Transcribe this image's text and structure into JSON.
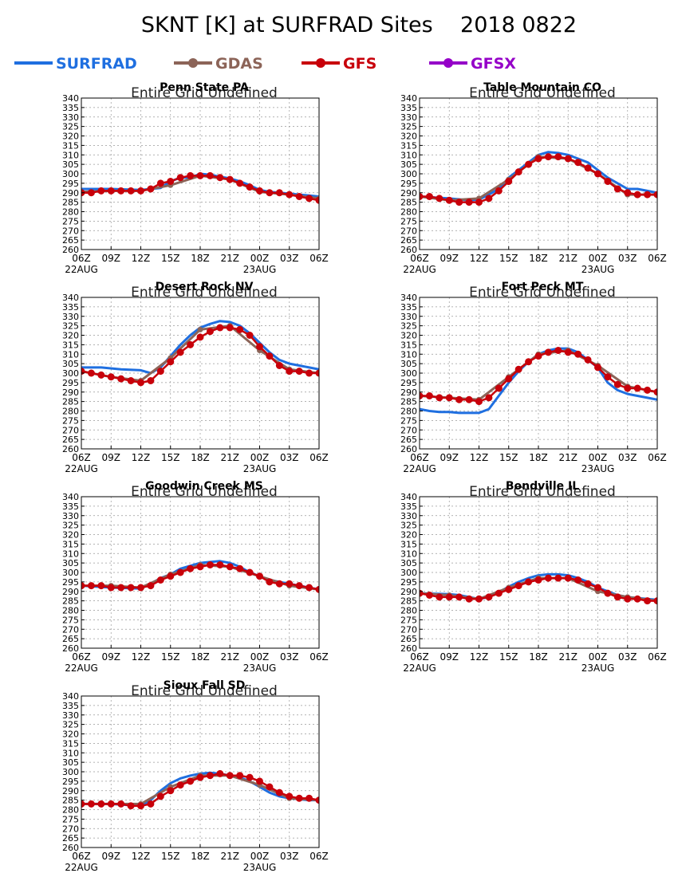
{
  "title": "SKNT [K] at SURFRAD Sites    2018 0822",
  "legend": [
    {
      "label": "SURFRAD",
      "color": "#1f6fe0",
      "marker": false
    },
    {
      "label": "GDAS",
      "color": "#8c6458",
      "marker": true
    },
    {
      "label": "GFS",
      "color": "#c8000a",
      "marker": true
    },
    {
      "label": "GFSX",
      "color": "#9500c8",
      "marker": true
    }
  ],
  "note": "Entire Grid Undefined",
  "axes": {
    "y_ticks": [
      260,
      265,
      270,
      275,
      280,
      285,
      290,
      295,
      300,
      305,
      310,
      315,
      320,
      325,
      330,
      335,
      340
    ],
    "ylim": [
      260,
      340
    ],
    "x_ticks": [
      "06Z",
      "09Z",
      "12Z",
      "15Z",
      "18Z",
      "21Z",
      "00Z",
      "03Z",
      "06Z"
    ],
    "x_hours": [
      0,
      3,
      6,
      9,
      12,
      15,
      18,
      21,
      24
    ],
    "xlim": [
      0,
      24
    ],
    "dates": [
      {
        "label": "22AUG",
        "hour": 0
      },
      {
        "label": "23AUG",
        "hour": 18
      }
    ],
    "grid": true
  },
  "chart_data": [
    {
      "type": "line",
      "site": "Penn State PA",
      "series": [
        {
          "name": "SURFRAD",
          "x": [
            0,
            3,
            6,
            8,
            9,
            10,
            11,
            12,
            13,
            14,
            15,
            16,
            17,
            18,
            19,
            20,
            21,
            22,
            23,
            24
          ],
          "values": [
            292,
            292,
            291.5,
            292.5,
            296,
            298,
            298,
            300,
            299.5,
            298.5,
            297.5,
            296,
            294,
            291.5,
            290.5,
            290,
            289.5,
            289,
            288.5,
            288
          ]
        },
        {
          "name": "GDAS",
          "x": [
            0,
            3,
            6,
            9,
            12,
            15,
            18,
            21,
            24
          ],
          "values": [
            290.5,
            291,
            291,
            294,
            299,
            297,
            290.5,
            289,
            287
          ]
        },
        {
          "name": "GFS",
          "x": [
            0,
            1,
            2,
            3,
            4,
            5,
            6,
            7,
            8,
            9,
            10,
            11,
            12,
            13,
            14,
            15,
            16,
            17,
            18,
            19,
            20,
            21,
            22,
            23,
            24
          ],
          "values": [
            290,
            290,
            291,
            291,
            291,
            291,
            291,
            292,
            295,
            296,
            298,
            299,
            299,
            299,
            298,
            297,
            295,
            293,
            291,
            290,
            290,
            289,
            288,
            287,
            286
          ]
        }
      ]
    },
    {
      "type": "line",
      "site": "Table Mountain CO",
      "series": [
        {
          "name": "SURFRAD",
          "x": [
            0,
            3,
            5,
            6,
            7,
            8,
            9,
            10,
            11,
            12,
            13,
            14,
            15,
            16,
            17,
            18,
            19,
            20,
            21,
            22,
            23,
            24
          ],
          "values": [
            288,
            287,
            286,
            286.5,
            289,
            292,
            298,
            302,
            306,
            310,
            311.5,
            311,
            310,
            308,
            306,
            302,
            298,
            295,
            292,
            292,
            291,
            290
          ]
        },
        {
          "name": "GDAS",
          "x": [
            0,
            3,
            6,
            9,
            12,
            15,
            18,
            21,
            24
          ],
          "values": [
            288,
            286,
            287,
            297,
            309,
            308,
            300,
            289,
            289
          ]
        },
        {
          "name": "GFS",
          "x": [
            0,
            1,
            2,
            3,
            4,
            5,
            6,
            7,
            8,
            9,
            10,
            11,
            12,
            13,
            14,
            15,
            16,
            17,
            18,
            19,
            20,
            21,
            22,
            23,
            24
          ],
          "values": [
            288,
            288,
            287,
            286,
            285,
            285,
            285,
            287,
            291,
            296,
            301,
            305,
            308,
            309,
            309,
            308,
            306,
            303,
            300,
            296,
            292,
            290,
            289,
            289,
            289
          ]
        }
      ]
    },
    {
      "type": "line",
      "site": "Desert Rock NV",
      "series": [
        {
          "name": "SURFRAD",
          "x": [
            0,
            1,
            2,
            4,
            6,
            7,
            8,
            9,
            10,
            11,
            12,
            13,
            14,
            15,
            16,
            17,
            18,
            19,
            20,
            21,
            22,
            23,
            24
          ],
          "values": [
            303,
            303,
            303,
            302,
            301.5,
            300,
            303,
            309,
            315,
            320,
            324,
            326,
            327.5,
            327,
            325,
            321,
            316,
            311,
            307,
            305,
            304,
            303,
            302
          ]
        },
        {
          "name": "GDAS",
          "x": [
            0,
            3,
            6,
            9,
            12,
            15,
            18,
            21,
            24
          ],
          "values": [
            301,
            298,
            296,
            308,
            323,
            325,
            312,
            302,
            300
          ]
        },
        {
          "name": "GFS",
          "x": [
            0,
            1,
            2,
            3,
            4,
            5,
            6,
            7,
            8,
            9,
            10,
            11,
            12,
            13,
            14,
            15,
            16,
            17,
            18,
            19,
            20,
            21,
            22,
            23,
            24
          ],
          "values": [
            301,
            300,
            299,
            298,
            297,
            296,
            295,
            296,
            301,
            306,
            311,
            315,
            319,
            322,
            324,
            324,
            323,
            320,
            314,
            309,
            304,
            301,
            301,
            300,
            300
          ]
        }
      ]
    },
    {
      "type": "line",
      "site": "Fort Peck MT",
      "series": [
        {
          "name": "SURFRAD",
          "x": [
            0,
            1,
            2,
            3,
            4,
            5,
            6,
            7,
            8,
            9,
            10,
            11,
            12,
            13,
            14,
            15,
            16,
            17,
            18,
            19,
            20,
            21,
            22,
            23,
            24
          ],
          "values": [
            281,
            280,
            279.5,
            279.5,
            279,
            279,
            279,
            281,
            288,
            295,
            301,
            306,
            310,
            312,
            313,
            313,
            311,
            307,
            303,
            295,
            291,
            289,
            288,
            287,
            286
          ]
        },
        {
          "name": "GDAS",
          "x": [
            0,
            3,
            6,
            9,
            12,
            15,
            18,
            21,
            24
          ],
          "values": [
            288,
            287,
            286,
            298,
            310,
            312,
            304,
            293,
            290
          ]
        },
        {
          "name": "GFS",
          "x": [
            0,
            1,
            2,
            3,
            4,
            5,
            6,
            7,
            8,
            9,
            10,
            11,
            12,
            13,
            14,
            15,
            16,
            17,
            18,
            19,
            20,
            21,
            22,
            23,
            24
          ],
          "values": [
            288,
            288,
            287,
            287,
            286,
            286,
            285,
            287,
            292,
            297,
            302,
            306,
            309,
            311,
            312,
            311,
            310,
            307,
            303,
            298,
            294,
            292,
            292,
            291,
            290
          ]
        }
      ]
    },
    {
      "type": "line",
      "site": "Goodwin Creek MS",
      "series": [
        {
          "name": "SURFRAD",
          "x": [
            0,
            3,
            6,
            7,
            8,
            9,
            10,
            11,
            12,
            13,
            14,
            15,
            16,
            17,
            18,
            19,
            20,
            21,
            22,
            23,
            24
          ],
          "values": [
            293,
            292,
            291.5,
            294,
            297,
            299,
            302,
            303.5,
            305,
            305.5,
            306,
            305,
            303,
            300,
            298,
            296,
            295,
            294,
            293,
            292,
            291
          ]
        },
        {
          "name": "GDAS",
          "x": [
            0,
            3,
            6,
            9,
            12,
            15,
            18,
            21,
            24
          ],
          "values": [
            293,
            293,
            292,
            299,
            304,
            303,
            298,
            293,
            291
          ]
        },
        {
          "name": "GFS",
          "x": [
            0,
            1,
            2,
            3,
            4,
            5,
            6,
            7,
            8,
            9,
            10,
            11,
            12,
            13,
            14,
            15,
            16,
            17,
            18,
            19,
            20,
            21,
            22,
            23,
            24
          ],
          "values": [
            293,
            293,
            293,
            292,
            292,
            292,
            292,
            293,
            296,
            298,
            300,
            302,
            303,
            304,
            304,
            303,
            302,
            300,
            298,
            295,
            294,
            294,
            293,
            292,
            291
          ]
        }
      ]
    },
    {
      "type": "line",
      "site": "Bondville IL",
      "series": [
        {
          "name": "SURFRAD",
          "x": [
            0,
            3,
            4,
            6,
            7,
            8,
            9,
            10,
            11,
            12,
            13,
            14,
            15,
            16,
            17,
            18,
            19,
            20,
            21,
            22,
            23,
            24
          ],
          "values": [
            289,
            288.5,
            288,
            286,
            287,
            289.5,
            292.5,
            295,
            297,
            298.5,
            299,
            299,
            298.5,
            297,
            295,
            292,
            290,
            288,
            287,
            286.5,
            286,
            285.5
          ]
        },
        {
          "name": "GDAS",
          "x": [
            0,
            3,
            6,
            9,
            12,
            15,
            18,
            21,
            24
          ],
          "values": [
            289,
            288,
            286,
            292,
            297,
            297,
            290,
            287,
            285
          ]
        },
        {
          "name": "GFS",
          "x": [
            0,
            1,
            2,
            3,
            4,
            5,
            6,
            7,
            8,
            9,
            10,
            11,
            12,
            13,
            14,
            15,
            16,
            17,
            18,
            19,
            20,
            21,
            22,
            23,
            24
          ],
          "values": [
            289,
            288,
            287,
            287,
            287,
            286,
            286,
            287,
            289,
            291,
            293,
            295,
            296,
            297,
            297,
            297,
            296,
            294,
            292,
            289,
            287,
            286,
            286,
            285,
            285
          ]
        }
      ]
    },
    {
      "type": "line",
      "site": "Sioux Fall SD",
      "series": [
        {
          "name": "SURFRAD",
          "x": [
            0,
            3,
            6,
            7,
            8,
            9,
            10,
            11,
            12,
            13,
            14,
            15,
            16,
            17,
            18,
            19,
            20,
            21,
            22,
            23,
            24
          ],
          "values": [
            283,
            283,
            282,
            285,
            290,
            294,
            296.5,
            298,
            299,
            299.5,
            299,
            298,
            297,
            295,
            292,
            289,
            287,
            286,
            285.5,
            285,
            285
          ]
        },
        {
          "name": "GDAS",
          "x": [
            0,
            3,
            6,
            9,
            12,
            15,
            18,
            21,
            24
          ],
          "values": [
            283,
            283,
            283,
            292,
            298,
            298,
            293,
            286,
            285
          ]
        },
        {
          "name": "GFS",
          "x": [
            0,
            1,
            2,
            3,
            4,
            5,
            6,
            7,
            8,
            9,
            10,
            11,
            12,
            13,
            14,
            15,
            16,
            17,
            18,
            19,
            20,
            21,
            22,
            23,
            24
          ],
          "values": [
            283,
            283,
            283,
            283,
            283,
            282,
            282,
            283,
            287,
            290,
            293,
            295,
            297,
            298,
            299,
            298,
            298,
            297,
            295,
            292,
            289,
            287,
            286,
            286,
            285
          ]
        }
      ]
    }
  ]
}
